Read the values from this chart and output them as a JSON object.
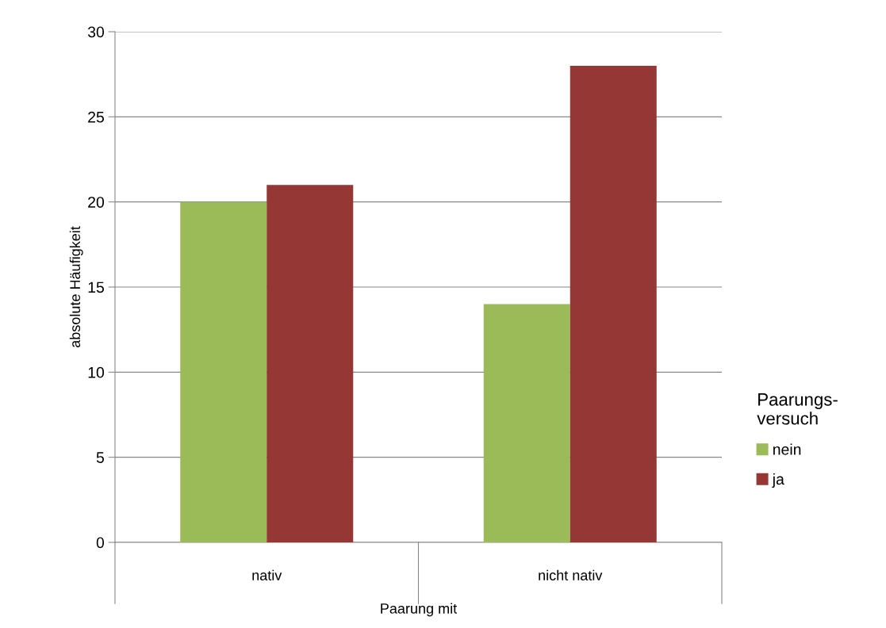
{
  "chart_data": {
    "type": "bar",
    "categories": [
      "nativ",
      "nicht nativ"
    ],
    "series": [
      {
        "name": "nein",
        "color": "#9bbb59",
        "values": [
          20,
          14
        ]
      },
      {
        "name": "ja",
        "color": "#953735",
        "values": [
          21,
          28
        ]
      }
    ],
    "xlabel": "Paarung mit",
    "ylabel": "absolute Häufigkeit",
    "legend_title": "Paarungs-\nversuch",
    "ylim": [
      0,
      30
    ],
    "yticks": [
      0,
      5,
      10,
      15,
      20,
      25,
      30
    ],
    "grid": "y",
    "legend": "right"
  }
}
